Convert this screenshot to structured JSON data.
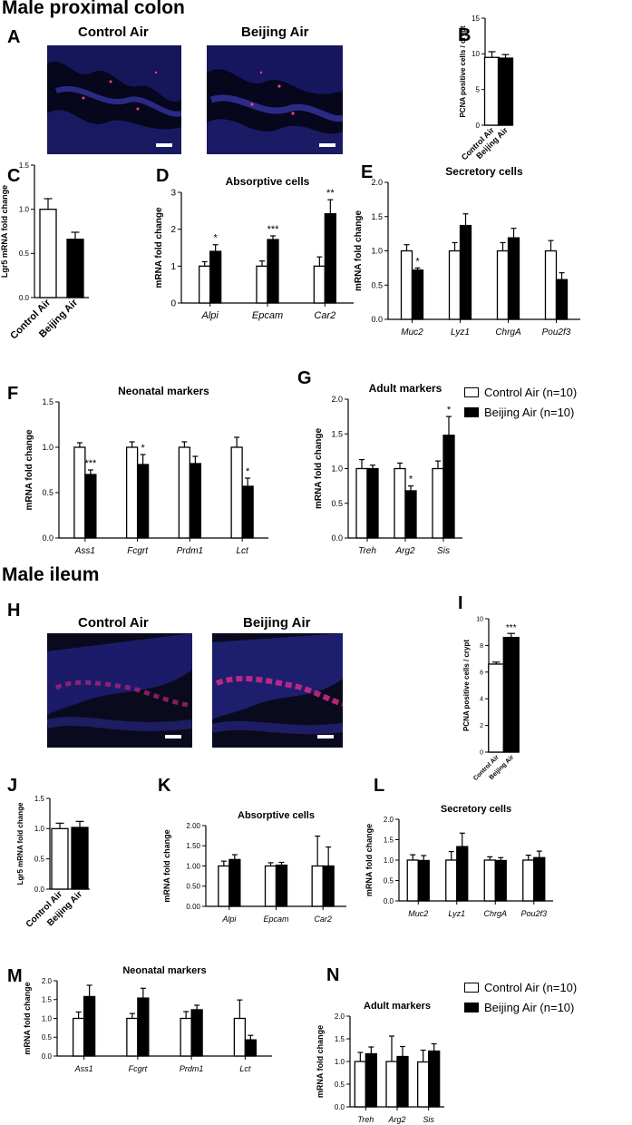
{
  "sections": [
    {
      "title": "Male proximal colon"
    },
    {
      "title": "Male ileum"
    }
  ],
  "microscopy": {
    "colon": {
      "letter": "A",
      "left_label": "Control Air",
      "right_label": "Beijing Air"
    },
    "ileum": {
      "letter": "H",
      "left_label": "Control Air",
      "right_label": "Beijing Air"
    }
  },
  "legend": {
    "items": [
      {
        "label": "Control Air (n=10)",
        "color": "#ffffff"
      },
      {
        "label": "Beijing Air (n=10)",
        "color": "#000000"
      }
    ]
  },
  "colors": {
    "control": "#ffffff",
    "beijing": "#000000",
    "stroke": "#000000"
  },
  "chart_data": [
    {
      "id": "B",
      "type": "bar",
      "title": "",
      "ylabel": "PCNA positive cells / crypt",
      "ylim": [
        0,
        15
      ],
      "yticks": [
        0,
        5,
        10,
        15
      ],
      "categories": [
        "Control Air",
        "Beijing Air"
      ],
      "values": [
        9.5,
        9.4
      ],
      "errors": [
        0.8,
        0.5
      ],
      "significance": [
        "",
        ""
      ]
    },
    {
      "id": "C",
      "type": "bar",
      "title": "",
      "ylabel": "Lgr5 mRNA fold change",
      "ylim": [
        0,
        1.5
      ],
      "yticks": [
        0.0,
        0.5,
        1.0,
        1.5
      ],
      "categories": [
        "Control Air",
        "Beijing Air"
      ],
      "values": [
        1.0,
        0.66
      ],
      "errors": [
        0.12,
        0.08
      ],
      "significance": [
        "",
        ""
      ]
    },
    {
      "id": "D",
      "type": "bar",
      "title": "Absorptive cells",
      "ylabel": "mRNA fold change",
      "ylim": [
        0,
        3
      ],
      "yticks": [
        0,
        1,
        2,
        3
      ],
      "categories": [
        "Alpi",
        "Epcam",
        "Car2"
      ],
      "series": [
        {
          "name": "Control Air (n=10)",
          "values": [
            1.0,
            1.0,
            1.0
          ],
          "errors": [
            0.12,
            0.14,
            0.25
          ]
        },
        {
          "name": "Beijing Air (n=10)",
          "values": [
            1.4,
            1.72,
            2.42
          ],
          "errors": [
            0.18,
            0.1,
            0.38
          ]
        }
      ],
      "significance": [
        "*",
        "***",
        "**"
      ]
    },
    {
      "id": "E",
      "type": "bar",
      "title": "Secretory cells",
      "ylabel": "mRNA fold change",
      "ylim": [
        0,
        2
      ],
      "yticks": [
        0.0,
        0.5,
        1.0,
        1.5,
        2.0
      ],
      "categories": [
        "Muc2",
        "Lyz1",
        "ChrgA",
        "Pou2f3"
      ],
      "series": [
        {
          "name": "Control Air (n=10)",
          "values": [
            1.0,
            1.0,
            1.0,
            1.0
          ],
          "errors": [
            0.09,
            0.12,
            0.12,
            0.15
          ]
        },
        {
          "name": "Beijing Air (n=10)",
          "values": [
            0.72,
            1.37,
            1.19,
            0.58
          ],
          "errors": [
            0.03,
            0.17,
            0.14,
            0.1
          ]
        }
      ],
      "significance": [
        "*",
        "",
        "",
        ""
      ]
    },
    {
      "id": "F",
      "type": "bar",
      "title": "Neonatal markers",
      "ylabel": "mRNA fold change",
      "ylim": [
        0,
        1.5
      ],
      "yticks": [
        0.0,
        0.5,
        1.0,
        1.5
      ],
      "categories": [
        "Ass1",
        "Fcgrt",
        "Prdm1",
        "Lct"
      ],
      "series": [
        {
          "name": "Control Air (n=10)",
          "values": [
            1.0,
            1.0,
            1.0,
            1.0
          ],
          "errors": [
            0.05,
            0.06,
            0.06,
            0.11
          ]
        },
        {
          "name": "Beijing Air (n=10)",
          "values": [
            0.7,
            0.81,
            0.82,
            0.57
          ],
          "errors": [
            0.05,
            0.11,
            0.08,
            0.09
          ]
        }
      ],
      "significance": [
        "***",
        "*",
        "",
        "*"
      ]
    },
    {
      "id": "G",
      "type": "bar",
      "title": "Adult markers",
      "ylabel": "mRNA fold change",
      "ylim": [
        0,
        2
      ],
      "yticks": [
        0.0,
        0.5,
        1.0,
        1.5,
        2.0
      ],
      "categories": [
        "Treh",
        "Arg2",
        "Sis"
      ],
      "series": [
        {
          "name": "Control Air (n=10)",
          "values": [
            1.0,
            1.0,
            1.0
          ],
          "errors": [
            0.13,
            0.08,
            0.11
          ]
        },
        {
          "name": "Beijing Air (n=10)",
          "values": [
            1.0,
            0.68,
            1.48
          ],
          "errors": [
            0.05,
            0.07,
            0.27
          ]
        }
      ],
      "significance": [
        "",
        "*",
        "*"
      ]
    },
    {
      "id": "I",
      "type": "bar",
      "title": "",
      "ylabel": "PCNA positive cells / crypt",
      "ylim": [
        0,
        10
      ],
      "yticks": [
        0,
        2,
        4,
        6,
        8,
        10
      ],
      "categories": [
        "Control Air",
        "Beijing Air"
      ],
      "values": [
        6.6,
        8.6
      ],
      "errors": [
        0.15,
        0.3
      ],
      "significance": [
        "",
        "***"
      ]
    },
    {
      "id": "J",
      "type": "bar",
      "title": "",
      "ylabel": "Lgr5 mRNA fold change",
      "ylim": [
        0,
        1.5
      ],
      "yticks": [
        0.0,
        0.5,
        1.0,
        1.5
      ],
      "categories": [
        "Control Air",
        "Beijing Air"
      ],
      "values": [
        1.0,
        1.02
      ],
      "errors": [
        0.09,
        0.1
      ],
      "significance": [
        "",
        ""
      ]
    },
    {
      "id": "K",
      "type": "bar",
      "title": "Absorptive cells",
      "ylabel": "mRNA fold change",
      "ylim": [
        0,
        2
      ],
      "yticks": [
        0.0,
        0.5,
        1.0,
        1.5,
        2.0
      ],
      "categories": [
        "Alpi",
        "Epcam",
        "Car2"
      ],
      "series": [
        {
          "name": "Control Air (n=10)",
          "values": [
            1.0,
            1.0,
            1.0
          ],
          "errors": [
            0.12,
            0.08,
            0.74
          ]
        },
        {
          "name": "Beijing Air (n=10)",
          "values": [
            1.16,
            1.02,
            1.0
          ],
          "errors": [
            0.12,
            0.07,
            0.47
          ]
        }
      ],
      "significance": [
        "",
        "",
        ""
      ]
    },
    {
      "id": "L",
      "type": "bar",
      "title": "Secretory cells",
      "ylabel": "mRNA fold change",
      "ylim": [
        0,
        2
      ],
      "yticks": [
        0.0,
        0.5,
        1.0,
        1.5,
        2.0
      ],
      "categories": [
        "Muc2",
        "Lyz1",
        "ChrgA",
        "Pou2f3"
      ],
      "series": [
        {
          "name": "Control Air (n=10)",
          "values": [
            1.0,
            1.0,
            1.0,
            1.0
          ],
          "errors": [
            0.13,
            0.21,
            0.08,
            0.12
          ]
        },
        {
          "name": "Beijing Air (n=10)",
          "values": [
            0.99,
            1.33,
            0.99,
            1.06
          ],
          "errors": [
            0.12,
            0.33,
            0.07,
            0.16
          ]
        }
      ],
      "significance": [
        "",
        "",
        "",
        ""
      ]
    },
    {
      "id": "M",
      "type": "bar",
      "title": "Neonatal markers",
      "ylabel": "mRNA fold change",
      "ylim": [
        0,
        2
      ],
      "yticks": [
        0.0,
        0.5,
        1.0,
        1.5,
        2.0
      ],
      "categories": [
        "Ass1",
        "Fcgrt",
        "Prdm1",
        "Lct"
      ],
      "series": [
        {
          "name": "Control Air (n=10)",
          "values": [
            1.0,
            1.0,
            1.0,
            1.0
          ],
          "errors": [
            0.17,
            0.13,
            0.18,
            0.49
          ]
        },
        {
          "name": "Beijing Air (n=10)",
          "values": [
            1.58,
            1.54,
            1.23,
            0.43
          ],
          "errors": [
            0.3,
            0.26,
            0.12,
            0.12
          ]
        }
      ],
      "significance": [
        "",
        "",
        "",
        ""
      ]
    },
    {
      "id": "N",
      "type": "bar",
      "title": "Adult markers",
      "ylabel": "mRNA fold change",
      "ylim": [
        0,
        2
      ],
      "yticks": [
        0.0,
        0.5,
        1.0,
        1.5,
        2.0
      ],
      "categories": [
        "Treh",
        "Arg2",
        "Sis"
      ],
      "series": [
        {
          "name": "Control Air (n=10)",
          "values": [
            1.0,
            1.0,
            0.99
          ],
          "errors": [
            0.2,
            0.56,
            0.26
          ]
        },
        {
          "name": "Beijing Air (n=10)",
          "values": [
            1.17,
            1.11,
            1.23
          ],
          "errors": [
            0.15,
            0.22,
            0.16
          ]
        }
      ],
      "significance": [
        "",
        "",
        ""
      ]
    }
  ]
}
